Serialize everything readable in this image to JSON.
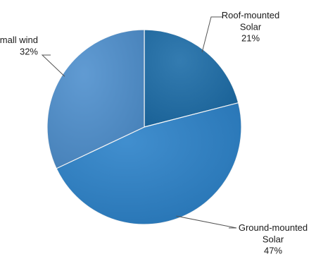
{
  "chart_data": {
    "type": "pie",
    "title": "",
    "start_angle_deg": 0,
    "direction": "clockwise",
    "slices": [
      {
        "name": "Roof-mounted Solar",
        "label_lines": [
          "Roof-mounted",
          "Solar"
        ],
        "value": 21,
        "value_label": "21%",
        "color": "#1D6DA8"
      },
      {
        "name": "Ground-mounted Solar",
        "label_lines": [
          "Ground-mounted",
          "Solar"
        ],
        "value": 47,
        "value_label": "47%",
        "color": "#2C82C9"
      },
      {
        "name": "Small wind",
        "label_lines": [
          "Small wind"
        ],
        "value": 32,
        "value_label": "32%",
        "color": "#4F90CE"
      }
    ],
    "legend": "none",
    "data_labels": "outside with leader lines"
  }
}
